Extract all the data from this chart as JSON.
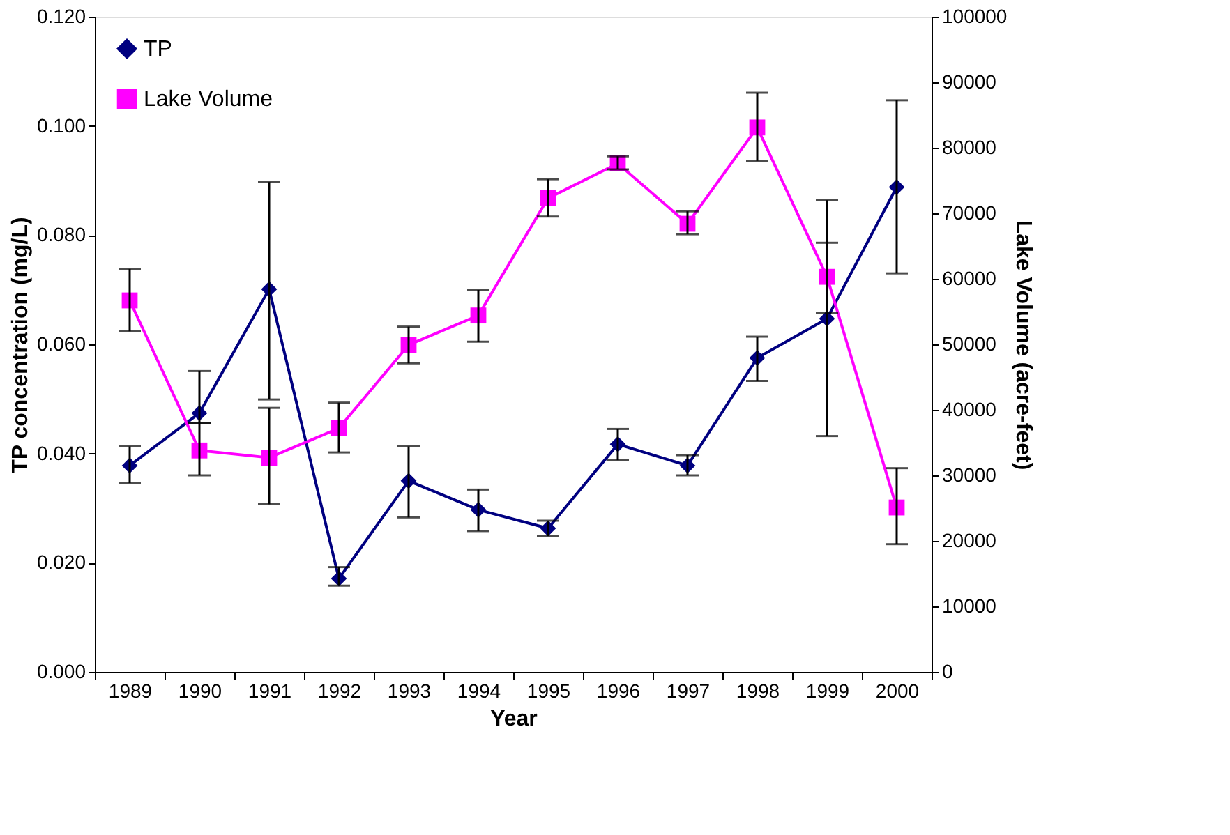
{
  "chart_data": {
    "type": "line",
    "xlabel": "Year",
    "ylabel": "TP concentration (mg/L)",
    "y2label": "Lake Volume (acre-feet)",
    "categories": [
      "1989",
      "1990",
      "1991",
      "1992",
      "1993",
      "1994",
      "1995",
      "1996",
      "1997",
      "1998",
      "1999",
      "2000"
    ],
    "series": [
      {
        "name": "TP",
        "color": "#000080",
        "marker": "diamond",
        "values": [
          0.0378,
          0.0474,
          0.0701,
          0.0171,
          0.035,
          0.0297,
          0.0263,
          0.0417,
          0.0378,
          0.0575,
          0.0647,
          0.0888
        ],
        "errors": [
          [
            0.0346,
            0.0413
          ],
          [
            0.0456,
            0.0551
          ],
          [
            0.0499,
            0.0897
          ],
          [
            0.0158,
            0.0192
          ],
          [
            0.0283,
            0.0413
          ],
          [
            0.0258,
            0.0334
          ],
          [
            0.0249,
            0.0277
          ],
          [
            0.0388,
            0.0445
          ],
          [
            0.036,
            0.0397
          ],
          [
            0.0533,
            0.0614
          ],
          [
            0.0432,
            0.0786
          ],
          [
            0.073,
            0.1047
          ]
        ]
      },
      {
        "name": "Lake Volume",
        "color": "#ff00ff",
        "marker": "square",
        "axis": "y2",
        "values": [
          56700,
          33800,
          32700,
          37200,
          49900,
          54400,
          72300,
          77600,
          68400,
          83100,
          60300,
          25100
        ],
        "errors": [
          [
            52000,
            61500
          ],
          [
            30000,
            38000
          ],
          [
            25600,
            40300
          ],
          [
            33500,
            41100
          ],
          [
            47100,
            52700
          ],
          [
            50400,
            58300
          ],
          [
            69500,
            75200
          ],
          [
            76700,
            78700
          ],
          [
            66800,
            70300
          ],
          [
            78000,
            88400
          ],
          [
            54800,
            72000
          ],
          [
            19500,
            31100
          ]
        ]
      }
    ],
    "ylim": [
      0,
      0.12
    ],
    "yticks": [
      {
        "value": 0,
        "label": "0.000"
      },
      {
        "value": 0.02,
        "label": "0.020"
      },
      {
        "value": 0.04,
        "label": "0.040"
      },
      {
        "value": 0.06,
        "label": "0.060"
      },
      {
        "value": 0.08,
        "label": "0.080"
      },
      {
        "value": 0.1,
        "label": "0.100"
      },
      {
        "value": 0.12,
        "label": "0.120"
      }
    ],
    "y2lim": [
      0,
      100000
    ],
    "y2ticks": [
      0,
      10000,
      20000,
      30000,
      40000,
      50000,
      60000,
      70000,
      80000,
      90000,
      100000
    ],
    "grid": false,
    "legend": "top left",
    "line_style": "solid"
  }
}
